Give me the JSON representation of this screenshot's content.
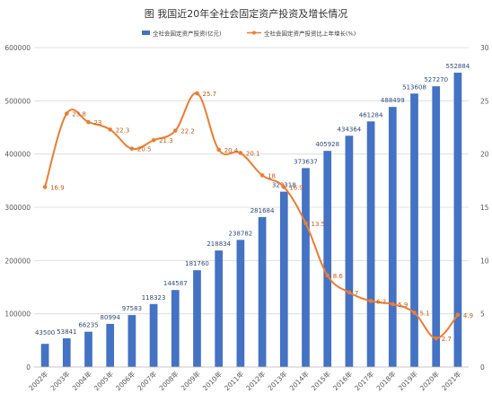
{
  "chart_data": {
    "type": "bar",
    "title": "图 我国近20年全社会固定资产投资及增长情况",
    "categories": [
      "2002年",
      "2003年",
      "2004年",
      "2005年",
      "2006年",
      "2007年",
      "2008年",
      "2009年",
      "2010年",
      "2011年",
      "2012年",
      "2013年",
      "2014年",
      "2015年",
      "2016年",
      "2017年",
      "2018年",
      "2019年",
      "2020年",
      "2021年"
    ],
    "series": [
      {
        "name": "全社会固定资产投资(亿元)",
        "type": "bar",
        "axis": "left",
        "color": "#4472c4",
        "values": [
          43500,
          53841,
          66235,
          80994,
          97583,
          118323,
          144587,
          181760,
          218834,
          238782,
          281684,
          329318,
          373637,
          405928,
          434364,
          461284,
          488499,
          513608,
          527270,
          552884
        ],
        "labels": [
          "43500",
          "53841",
          "66235",
          "80994",
          "97583",
          "118323",
          "144587",
          "181760",
          "218834",
          "238782",
          "281684",
          "329318",
          "373637",
          "405928",
          "434364",
          "461284",
          "488499",
          "513608",
          "527270",
          "552884"
        ]
      },
      {
        "name": "全社会固定资产投资比上年增长(%)",
        "type": "line",
        "axis": "right",
        "color": "#ed7d31",
        "values": [
          16.9,
          23.8,
          23,
          22.3,
          20.5,
          21.3,
          22.2,
          25.7,
          20.4,
          20.1,
          18,
          16.9,
          13.5,
          8.6,
          7,
          6.2,
          5.9,
          5.1,
          2.7,
          4.9
        ],
        "labels": [
          "16.9",
          "23.8",
          "23",
          "22.3",
          "20.5",
          "21.3",
          "22.2",
          "25.7",
          "20.4",
          "20.1",
          "18",
          "16.9",
          "13.5",
          "8.6",
          "7",
          "6.2",
          "5.9",
          "5.1",
          "2.7",
          "4.9"
        ]
      }
    ],
    "y_left": {
      "ylim": [
        0,
        600000
      ],
      "ticks": [
        "0",
        "100000",
        "200000",
        "300000",
        "400000",
        "500000",
        "600000"
      ]
    },
    "y_right": {
      "ylim": [
        0,
        30
      ],
      "ticks": [
        "0",
        "5",
        "10",
        "15",
        "20",
        "25",
        "30"
      ]
    },
    "grid": true,
    "legend_position": "top-right"
  }
}
